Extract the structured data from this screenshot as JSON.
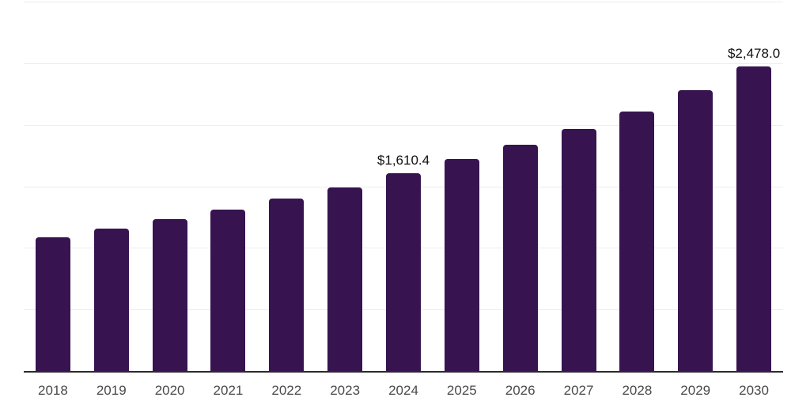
{
  "chart_data": {
    "type": "bar",
    "title": "",
    "xlabel": "",
    "ylabel": "",
    "categories": [
      "2018",
      "2019",
      "2020",
      "2021",
      "2022",
      "2023",
      "2024",
      "2025",
      "2026",
      "2027",
      "2028",
      "2029",
      "2030"
    ],
    "values": [
      1095,
      1165,
      1240,
      1320,
      1405,
      1495,
      1610.4,
      1725,
      1845,
      1975,
      2115,
      2285,
      2478
    ],
    "annotations": [
      {
        "category": "2024",
        "text": "$1,610.4"
      },
      {
        "category": "2030",
        "text": "$2,478.0"
      }
    ],
    "ylim": [
      0,
      3000
    ],
    "grid_step": 500,
    "grid_on": true,
    "y_tick_labels_visible": false,
    "legend": "none",
    "colors": {
      "bar": "#371450",
      "gridline": "#ededed",
      "axis_line": "#2b2b2b",
      "tick_label": "#4a4a4a",
      "data_label": "#111111",
      "background": "#ffffff"
    }
  }
}
